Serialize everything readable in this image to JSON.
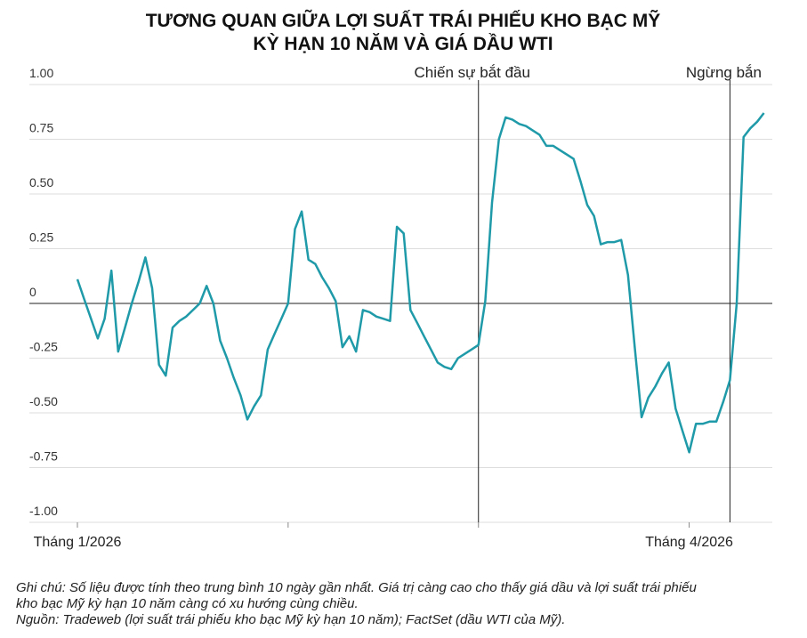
{
  "chart_data": {
    "type": "line",
    "title": [
      "TƯƠNG QUAN GIỮA LỢI SUẤT TRÁI PHIẾU KHO BẠC MỸ",
      "KỲ HẠN 10 NĂM VÀ GIÁ DẦU WTI"
    ],
    "categories": [
      "Tháng 1/2026",
      null,
      null,
      null,
      null,
      null,
      null,
      null,
      null,
      null,
      null,
      null,
      null,
      null,
      null,
      null,
      null,
      null,
      null,
      null,
      null,
      null,
      null,
      null,
      null,
      null,
      null,
      null,
      null,
      null,
      null,
      null,
      null,
      null,
      null,
      null,
      null,
      null,
      null,
      null,
      null,
      null,
      null,
      null,
      null,
      null,
      null,
      null,
      null,
      null,
      null,
      null,
      null,
      null,
      null,
      null,
      null,
      null,
      null,
      null,
      null,
      null,
      null,
      null,
      null,
      null,
      null,
      null,
      null,
      null,
      null,
      null,
      null,
      null,
      null,
      null,
      null,
      null,
      null,
      null,
      null,
      null,
      null,
      null,
      null,
      null,
      null,
      null,
      null,
      null,
      "Tháng 4/2026",
      null,
      null,
      null,
      null,
      null,
      null,
      null,
      null,
      null,
      null,
      null
    ],
    "values": [
      0.11,
      0.02,
      -0.07,
      -0.16,
      -0.07,
      0.15,
      -0.22,
      -0.11,
      0.0,
      0.1,
      0.21,
      0.07,
      -0.28,
      -0.33,
      -0.11,
      -0.08,
      -0.06,
      -0.03,
      0.0,
      0.08,
      0.0,
      -0.17,
      -0.25,
      -0.34,
      -0.42,
      -0.53,
      -0.47,
      -0.42,
      -0.21,
      -0.14,
      -0.07,
      0.0,
      0.34,
      0.42,
      0.2,
      0.18,
      0.12,
      0.07,
      0.01,
      -0.2,
      -0.15,
      -0.22,
      -0.03,
      -0.04,
      -0.06,
      -0.07,
      -0.08,
      0.35,
      0.32,
      -0.03,
      -0.09,
      -0.15,
      -0.21,
      -0.27,
      -0.29,
      -0.3,
      -0.25,
      -0.23,
      -0.21,
      -0.19,
      0.01,
      0.46,
      0.75,
      0.85,
      0.84,
      0.82,
      0.81,
      0.79,
      0.77,
      0.72,
      0.72,
      0.7,
      0.68,
      0.66,
      0.56,
      0.45,
      0.4,
      0.27,
      0.28,
      0.28,
      0.29,
      0.13,
      -0.2,
      -0.52,
      -0.43,
      -0.38,
      -0.32,
      -0.27,
      -0.48,
      -0.58,
      -0.68,
      -0.55,
      -0.55,
      -0.54,
      -0.54,
      -0.45,
      -0.35,
      0.0,
      0.76,
      0.8,
      0.83,
      0.87
    ],
    "color": "#1f9aa8",
    "ylim": [
      -1,
      1
    ],
    "yticks": [
      {
        "value": 1,
        "label": "1.00"
      },
      0.75,
      {
        "value": 0.5,
        "label": "0.50"
      },
      0.25,
      0,
      -0.25,
      {
        "value": -0.5,
        "label": "-0.50"
      },
      -0.75,
      {
        "value": -1,
        "label": "-1.00"
      }
    ],
    "xticks": [
      0,
      31,
      59,
      90
    ],
    "grid": true,
    "annotations": [
      {
        "text": "Chiến sự bắt đầu",
        "index": 59
      },
      {
        "text": "Ngừng bắn",
        "index": 96
      }
    ],
    "note": "Ghi chú: Số liệu được tính theo trung bình 10 ngày gần nhất. Giá trị càng cao cho thấy giá dầu và lợi suất trái phiếu kho bạc Mỹ kỳ hạn 10 năm càng có xu hướng cùng chiều.",
    "source": "Nguồn: Tradeweb (lợi suất trái phiếu kho bạc Mỹ kỳ hạn 10 năm); FactSet (dầu WTI của Mỹ)."
  }
}
